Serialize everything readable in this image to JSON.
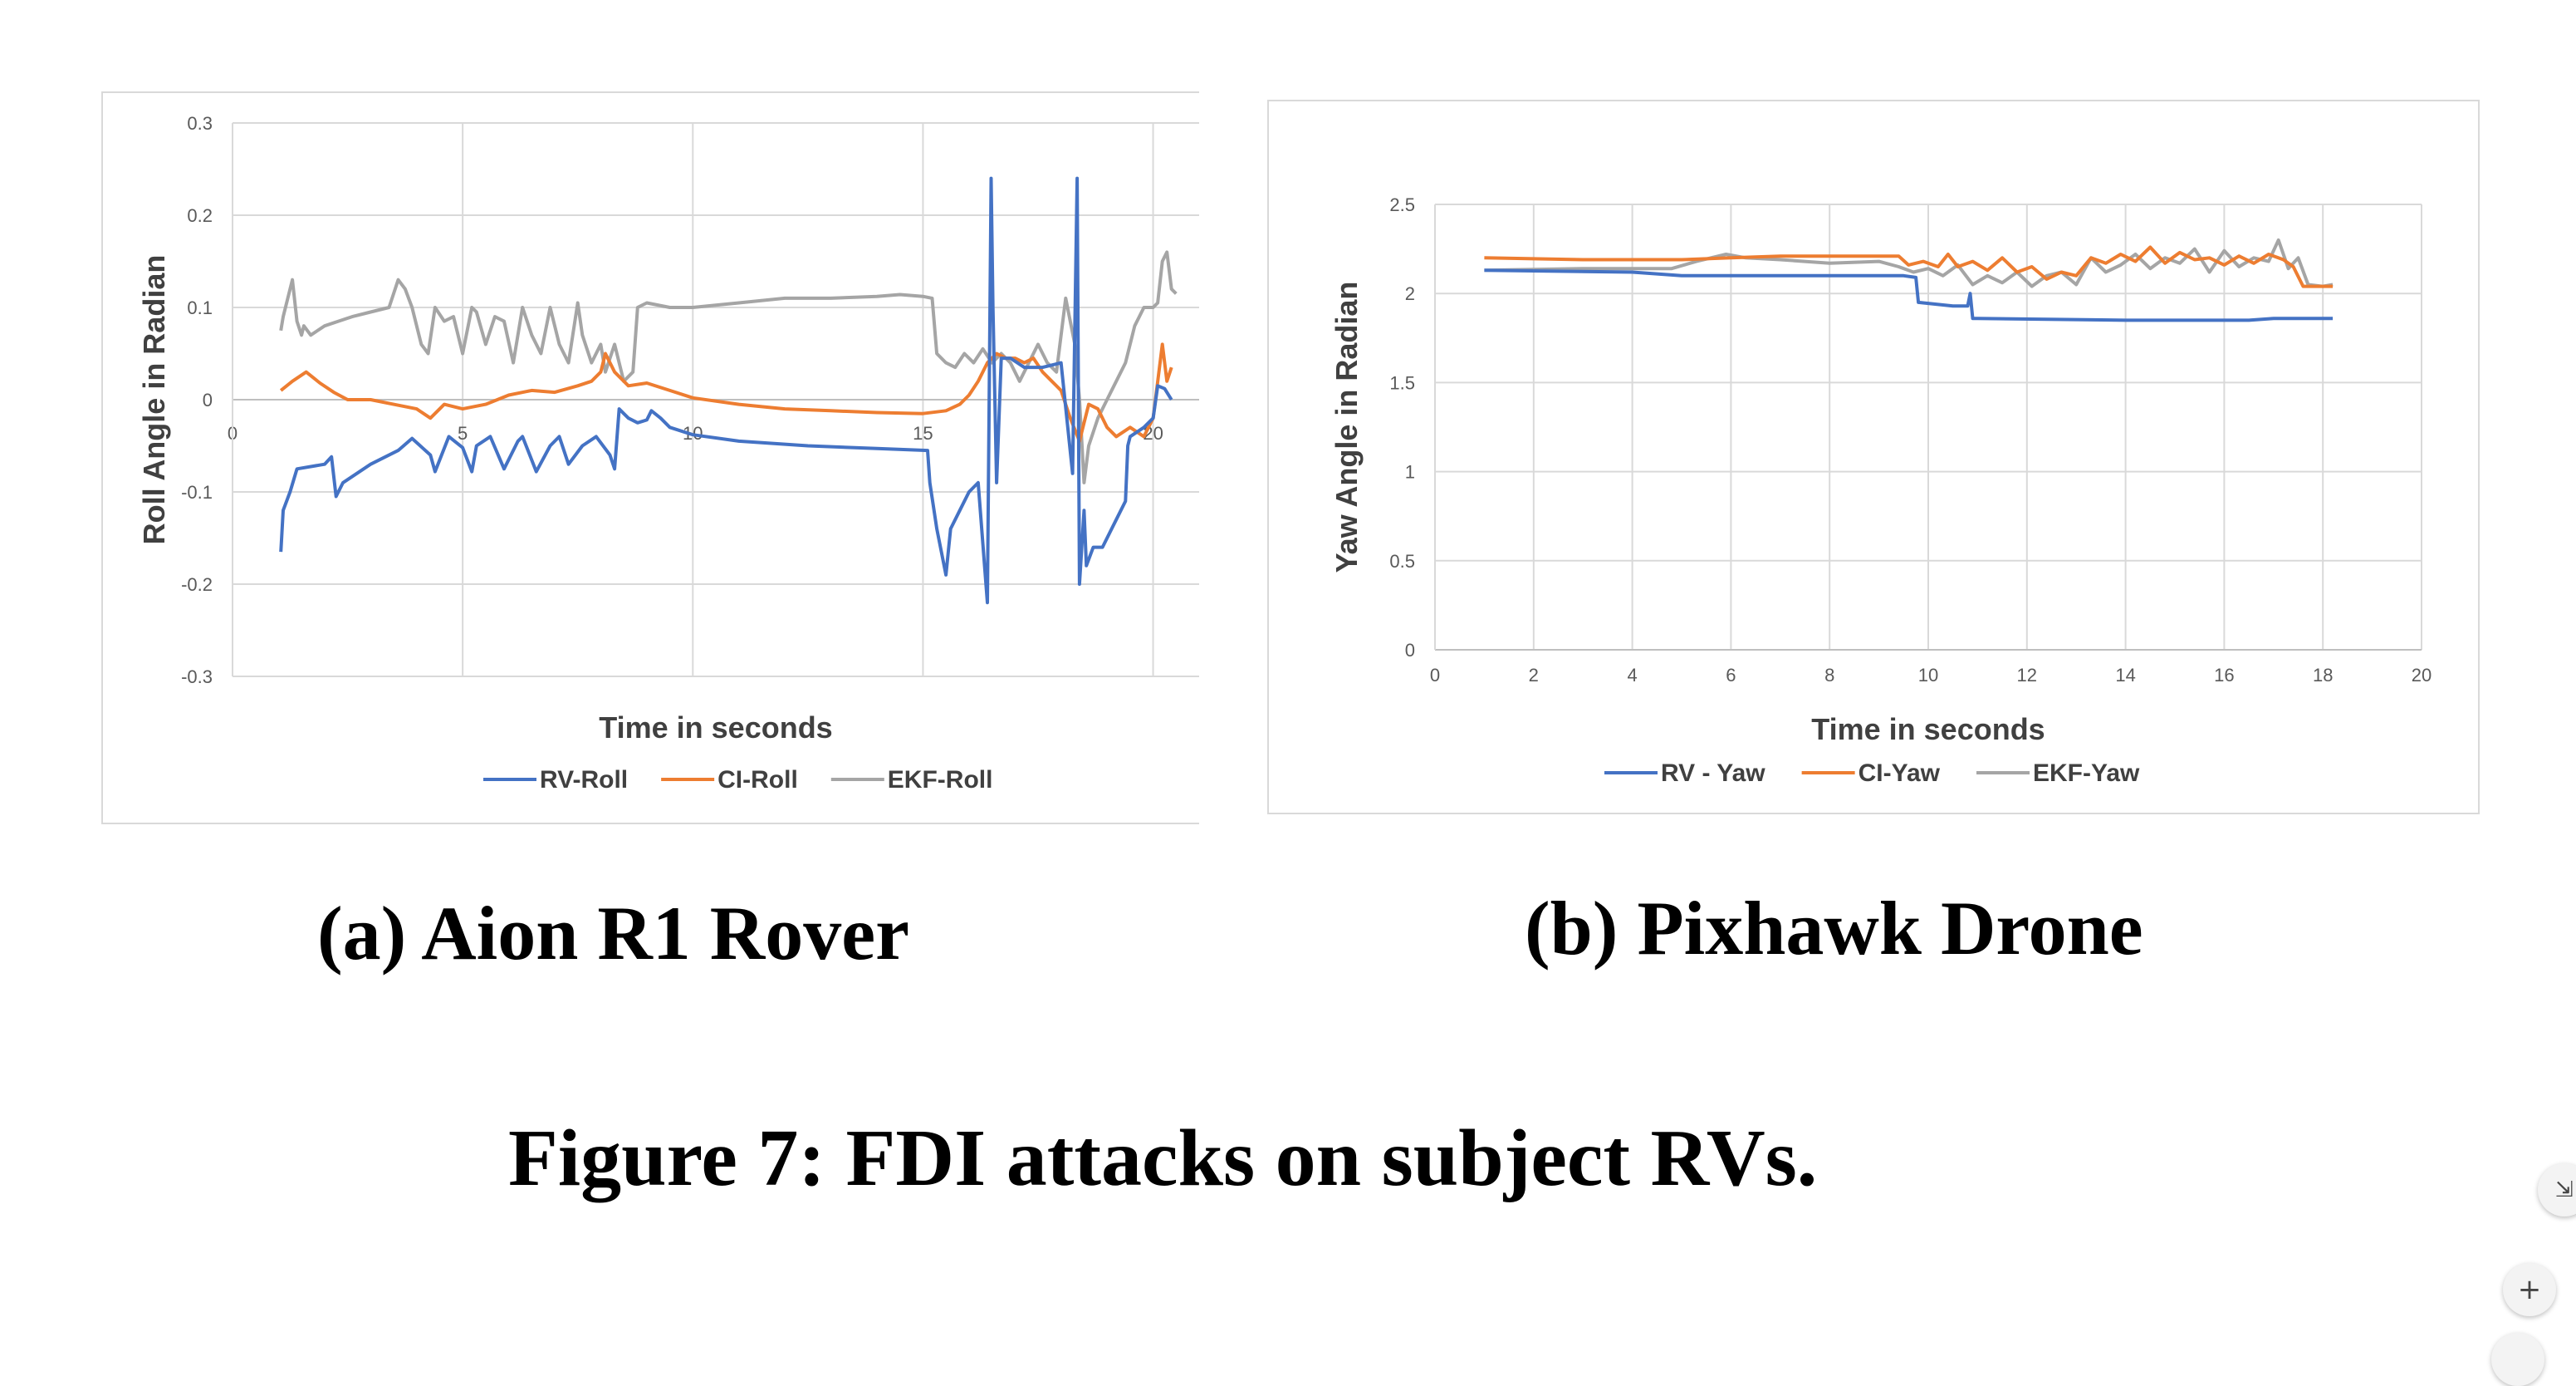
{
  "figure_caption": "Figure 7: FDI attacks on subject RVs.",
  "panels": [
    {
      "caption": "(a) Aion R1 Rover",
      "xlabel": "Time in seconds",
      "ylabel": "Roll Angle in Radian",
      "x_ticks": [
        "0",
        "5",
        "10",
        "15",
        "20"
      ],
      "y_ticks": [
        "0.3",
        "0.2",
        "0.1",
        "0",
        "-0.1",
        "-0.2",
        "-0.3"
      ],
      "legend": [
        "RV-Roll",
        "CI-Roll",
        "EKF-Roll"
      ]
    },
    {
      "caption": "(b) Pixhawk Drone",
      "xlabel": "Time in seconds",
      "ylabel": "Yaw Angle in Radian",
      "x_ticks": [
        "0",
        "2",
        "4",
        "6",
        "8",
        "10",
        "12",
        "14",
        "16",
        "18",
        "20"
      ],
      "y_ticks": [
        "2.5",
        "2",
        "1.5",
        "1",
        "0.5",
        "0"
      ],
      "legend": [
        "RV - Yaw",
        "CI-Yaw",
        "EKF-Yaw"
      ]
    }
  ],
  "colors": {
    "rv": "#4472c4",
    "ci": "#ed7d31",
    "ekf": "#a5a5a5",
    "grid": "#d9d9d9"
  },
  "chart_data": [
    {
      "type": "line",
      "xlabel": "Time in seconds",
      "ylabel": "Roll Angle in Radian",
      "xlim": [
        0,
        21
      ],
      "ylim": [
        -0.3,
        0.3
      ],
      "x_axis_crosses_at": 0,
      "grid": true,
      "legend_position": "bottom",
      "series": [
        {
          "name": "RV-Roll",
          "color": "#4472c4",
          "x": [
            1.05,
            1.1,
            1.25,
            1.4,
            2.0,
            2.15,
            2.25,
            2.4,
            3.0,
            3.6,
            3.9,
            4.3,
            4.4,
            4.7,
            5.0,
            5.2,
            5.3,
            5.6,
            5.9,
            6.2,
            6.3,
            6.6,
            6.9,
            7.1,
            7.3,
            7.6,
            7.9,
            8.2,
            8.3,
            8.4,
            8.5,
            8.6,
            8.8,
            9.0,
            9.1,
            9.3,
            9.5,
            10.0,
            11.0,
            12.5,
            14.0,
            15.1,
            15.15,
            15.3,
            15.5,
            15.6,
            15.8,
            16.0,
            16.2,
            16.4,
            16.48,
            16.52,
            16.6,
            16.7,
            16.9,
            17.2,
            17.6,
            18.0,
            18.25,
            18.35,
            18.4,
            18.5,
            18.55,
            18.7,
            18.9,
            19.2,
            19.4,
            19.45,
            19.5,
            19.8,
            20.0,
            20.1,
            20.25,
            20.4
          ],
          "y": [
            -0.165,
            -0.12,
            -0.1,
            -0.075,
            -0.07,
            -0.062,
            -0.105,
            -0.09,
            -0.07,
            -0.055,
            -0.042,
            -0.06,
            -0.078,
            -0.04,
            -0.052,
            -0.078,
            -0.05,
            -0.04,
            -0.075,
            -0.045,
            -0.04,
            -0.078,
            -0.05,
            -0.04,
            -0.07,
            -0.05,
            -0.04,
            -0.06,
            -0.075,
            -0.01,
            -0.015,
            -0.02,
            -0.025,
            -0.022,
            -0.012,
            -0.02,
            -0.03,
            -0.038,
            -0.045,
            -0.05,
            -0.053,
            -0.055,
            -0.09,
            -0.14,
            -0.19,
            -0.14,
            -0.12,
            -0.1,
            -0.09,
            -0.22,
            0.24,
            0.1,
            -0.09,
            0.045,
            0.045,
            0.035,
            0.035,
            0.04,
            -0.08,
            0.24,
            -0.2,
            -0.12,
            -0.18,
            -0.16,
            -0.16,
            -0.13,
            -0.11,
            -0.05,
            -0.04,
            -0.03,
            -0.02,
            0.015,
            0.012,
            0.0
          ]
        },
        {
          "name": "CI-Roll",
          "color": "#ed7d31",
          "x": [
            1.05,
            1.3,
            1.6,
            1.9,
            2.2,
            2.5,
            3.0,
            3.5,
            4.0,
            4.3,
            4.6,
            5.0,
            5.5,
            6.0,
            6.5,
            7.0,
            7.5,
            7.8,
            8.0,
            8.1,
            8.3,
            8.6,
            9.0,
            9.5,
            10.0,
            11.0,
            12.0,
            13.0,
            14.0,
            15.0,
            15.5,
            15.8,
            16.0,
            16.2,
            16.4,
            16.6,
            16.8,
            17.0,
            17.2,
            17.4,
            17.6,
            17.8,
            18.0,
            18.2,
            18.4,
            18.6,
            18.8,
            19.0,
            19.2,
            19.5,
            19.8,
            20.0,
            20.2,
            20.3,
            20.4
          ],
          "y": [
            0.01,
            0.02,
            0.03,
            0.018,
            0.008,
            0.0,
            0.0,
            -0.005,
            -0.01,
            -0.02,
            -0.005,
            -0.01,
            -0.005,
            0.005,
            0.01,
            0.008,
            0.015,
            0.02,
            0.03,
            0.05,
            0.03,
            0.015,
            0.018,
            0.01,
            0.002,
            -0.005,
            -0.01,
            -0.012,
            -0.014,
            -0.015,
            -0.012,
            -0.005,
            0.005,
            0.02,
            0.04,
            0.05,
            0.045,
            0.045,
            0.04,
            0.045,
            0.03,
            0.02,
            0.01,
            -0.02,
            -0.045,
            -0.005,
            -0.01,
            -0.03,
            -0.04,
            -0.03,
            -0.04,
            -0.02,
            0.06,
            0.02,
            0.035
          ]
        },
        {
          "name": "EKF-Roll",
          "color": "#a5a5a5",
          "x": [
            1.05,
            1.1,
            1.3,
            1.4,
            1.5,
            1.55,
            1.7,
            2.0,
            2.3,
            2.6,
            3.0,
            3.4,
            3.6,
            3.75,
            3.9,
            4.1,
            4.25,
            4.4,
            4.6,
            4.8,
            5.0,
            5.2,
            5.3,
            5.5,
            5.7,
            5.9,
            6.1,
            6.3,
            6.5,
            6.7,
            6.9,
            7.1,
            7.3,
            7.5,
            7.6,
            7.8,
            8.0,
            8.1,
            8.3,
            8.5,
            8.7,
            8.8,
            9.0,
            9.5,
            10.0,
            11.0,
            12.0,
            13.0,
            14.0,
            14.5,
            15.0,
            15.2,
            15.3,
            15.5,
            15.7,
            15.9,
            16.1,
            16.3,
            16.5,
            16.7,
            16.9,
            17.1,
            17.3,
            17.5,
            17.7,
            17.9,
            18.1,
            18.3,
            18.4,
            18.5,
            18.6,
            18.8,
            19.0,
            19.2,
            19.4,
            19.6,
            19.8,
            20.0,
            20.1,
            20.2,
            20.3,
            20.4,
            20.5
          ],
          "y": [
            0.075,
            0.09,
            0.13,
            0.085,
            0.07,
            0.08,
            0.07,
            0.08,
            0.085,
            0.09,
            0.095,
            0.1,
            0.13,
            0.12,
            0.1,
            0.06,
            0.05,
            0.1,
            0.085,
            0.09,
            0.05,
            0.1,
            0.095,
            0.06,
            0.09,
            0.085,
            0.04,
            0.1,
            0.07,
            0.05,
            0.1,
            0.06,
            0.04,
            0.105,
            0.07,
            0.04,
            0.06,
            0.03,
            0.06,
            0.02,
            0.03,
            0.1,
            0.105,
            0.1,
            0.1,
            0.105,
            0.11,
            0.11,
            0.112,
            0.114,
            0.112,
            0.11,
            0.05,
            0.04,
            0.035,
            0.05,
            0.04,
            0.055,
            0.04,
            0.05,
            0.04,
            0.02,
            0.04,
            0.06,
            0.04,
            0.03,
            0.11,
            0.06,
            0.0,
            -0.09,
            -0.05,
            -0.02,
            0.0,
            0.02,
            0.04,
            0.08,
            0.1,
            0.1,
            0.105,
            0.15,
            0.16,
            0.12,
            0.115
          ]
        }
      ]
    },
    {
      "type": "line",
      "xlabel": "Time in seconds",
      "ylabel": "Yaw Angle in Radian",
      "xlim": [
        0,
        20
      ],
      "ylim": [
        0,
        2.5
      ],
      "grid": true,
      "legend_position": "bottom",
      "series": [
        {
          "name": "RV - Yaw",
          "color": "#4472c4",
          "x": [
            1.0,
            4.0,
            5.0,
            9.5,
            9.75,
            9.8,
            10.5,
            10.8,
            10.85,
            10.9,
            11.0,
            14.0,
            16.5,
            17.0,
            18.2
          ],
          "y": [
            2.13,
            2.12,
            2.1,
            2.1,
            2.09,
            1.95,
            1.93,
            1.93,
            2.0,
            1.86,
            1.86,
            1.85,
            1.85,
            1.86,
            1.86
          ]
        },
        {
          "name": "CI-Yaw",
          "color": "#ed7d31",
          "x": [
            1.0,
            3.0,
            5.0,
            6.0,
            7.0,
            8.5,
            9.4,
            9.6,
            9.9,
            10.2,
            10.4,
            10.6,
            10.9,
            11.2,
            11.5,
            11.8,
            12.1,
            12.4,
            12.7,
            13.0,
            13.3,
            13.6,
            13.9,
            14.2,
            14.5,
            14.8,
            15.1,
            15.4,
            15.7,
            16.0,
            16.3,
            16.6,
            16.9,
            17.2,
            17.4,
            17.6,
            18.0,
            18.2
          ],
          "y": [
            2.2,
            2.19,
            2.19,
            2.2,
            2.21,
            2.21,
            2.21,
            2.16,
            2.18,
            2.15,
            2.22,
            2.15,
            2.18,
            2.13,
            2.2,
            2.12,
            2.15,
            2.08,
            2.12,
            2.1,
            2.2,
            2.17,
            2.22,
            2.18,
            2.26,
            2.17,
            2.23,
            2.19,
            2.2,
            2.16,
            2.21,
            2.17,
            2.22,
            2.19,
            2.15,
            2.04,
            2.04,
            2.04
          ]
        },
        {
          "name": "EKF-Yaw",
          "color": "#a5a5a5",
          "x": [
            1.0,
            3.0,
            4.8,
            5.3,
            5.9,
            6.3,
            7.0,
            8.0,
            9.0,
            9.4,
            9.7,
            10.0,
            10.3,
            10.6,
            10.9,
            11.2,
            11.5,
            11.8,
            12.1,
            12.4,
            12.7,
            13.0,
            13.3,
            13.6,
            13.9,
            14.2,
            14.5,
            14.8,
            15.1,
            15.4,
            15.7,
            16.0,
            16.3,
            16.6,
            16.9,
            17.1,
            17.3,
            17.5,
            17.7,
            18.0,
            18.2
          ],
          "y": [
            2.13,
            2.14,
            2.14,
            2.18,
            2.22,
            2.2,
            2.19,
            2.17,
            2.18,
            2.15,
            2.12,
            2.14,
            2.1,
            2.16,
            2.05,
            2.1,
            2.06,
            2.12,
            2.04,
            2.1,
            2.12,
            2.05,
            2.2,
            2.12,
            2.16,
            2.22,
            2.14,
            2.2,
            2.17,
            2.25,
            2.12,
            2.24,
            2.15,
            2.2,
            2.18,
            2.3,
            2.14,
            2.2,
            2.05,
            2.04,
            2.05
          ]
        }
      ]
    }
  ]
}
